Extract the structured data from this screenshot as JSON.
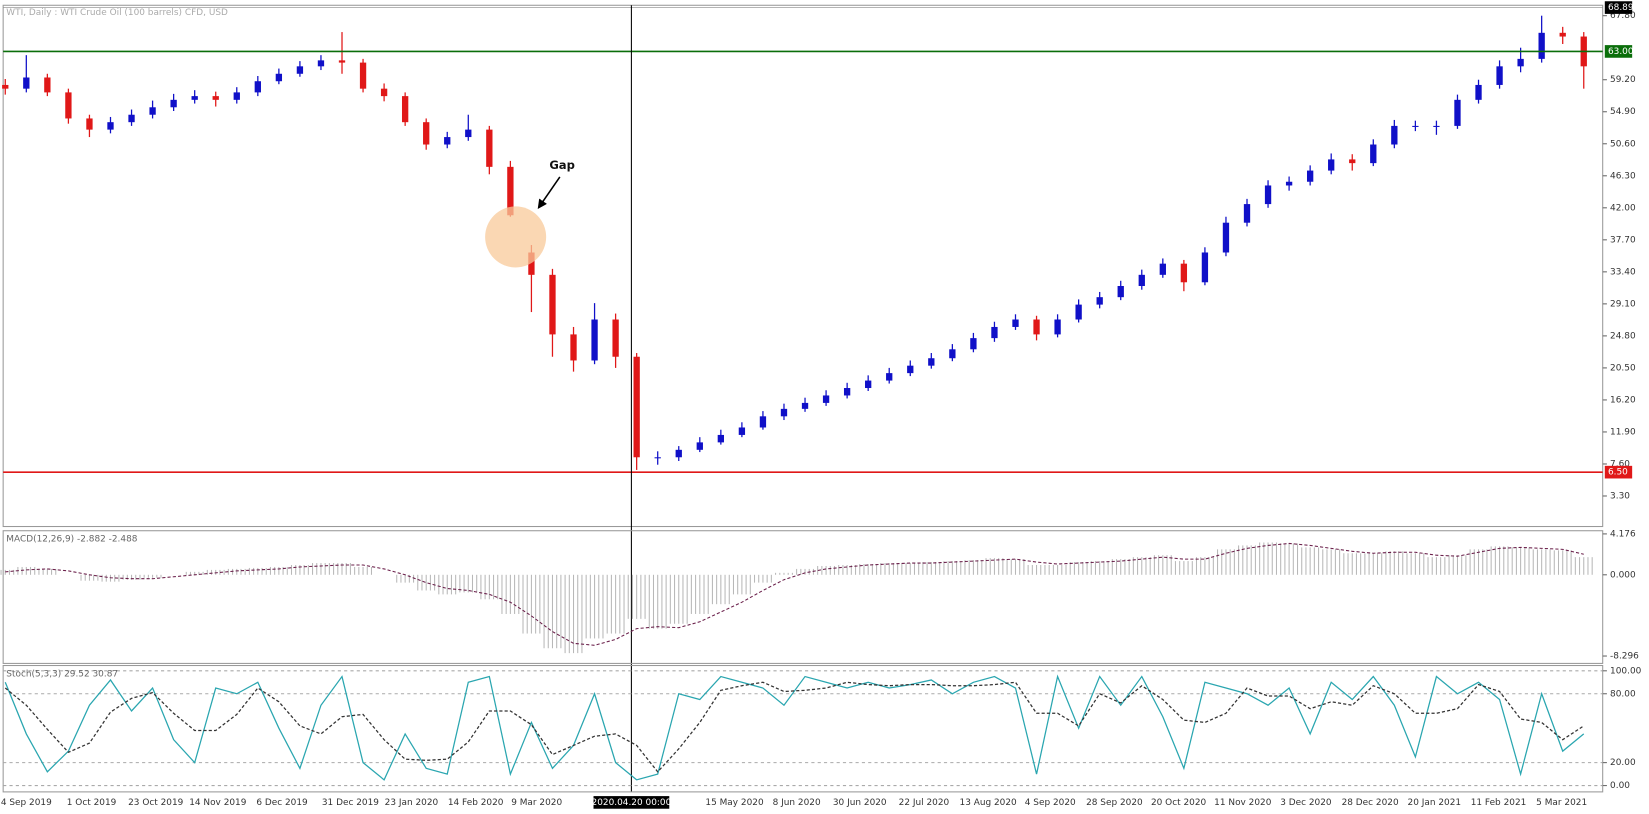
{
  "chart_data": [
    {
      "type": "candlestick",
      "title": "WTI, Daily : WTI Crude Oil (100 barrels) CFD, USD",
      "open": [
        58.5,
        58.0,
        59.5,
        57.5,
        54.0,
        52.5,
        53.5,
        54.5,
        55.5,
        56.5,
        57.0,
        56.5,
        57.5,
        59.0,
        60.0,
        61.0,
        61.8,
        61.5,
        58.0,
        57.0,
        53.5,
        50.5,
        51.5,
        52.5,
        47.5,
        36.0,
        33.0,
        25.0,
        21.5,
        27.0,
        22.0,
        8.5,
        8.5,
        9.5,
        10.5,
        11.5,
        12.5,
        14.0,
        15.0,
        15.8,
        16.8,
        17.8,
        18.8,
        19.8,
        20.8,
        21.8,
        23.0,
        24.5,
        26.0,
        27.0,
        25.0,
        27.0,
        29.0,
        30.0,
        31.5,
        33.0,
        34.5,
        32.0,
        36.0,
        40.0,
        42.5,
        45.0,
        45.5,
        47.0,
        48.5,
        48.0,
        50.5,
        53.0,
        53.0,
        53.0,
        56.5,
        58.5,
        61.0,
        62.0,
        65.5,
        65.0
      ],
      "high": [
        59.3,
        62.5,
        60.0,
        58.0,
        54.5,
        54.2,
        55.2,
        56.4,
        57.3,
        57.8,
        57.6,
        58.2,
        59.7,
        60.7,
        61.7,
        62.5,
        65.6,
        62.0,
        58.7,
        57.5,
        54.0,
        52.2,
        54.5,
        53.0,
        48.3,
        37.0,
        33.8,
        26.0,
        29.2,
        27.8,
        22.5,
        9.3,
        10.0,
        11.2,
        12.2,
        13.2,
        14.7,
        15.7,
        16.5,
        17.5,
        18.5,
        19.5,
        20.5,
        21.5,
        22.5,
        23.7,
        25.2,
        26.7,
        27.7,
        27.5,
        27.7,
        29.7,
        30.7,
        32.2,
        33.7,
        35.2,
        35.0,
        36.7,
        40.8,
        43.2,
        45.7,
        46.2,
        47.7,
        49.3,
        49.2,
        51.2,
        53.8,
        53.7,
        53.7,
        57.2,
        59.2,
        61.8,
        63.5,
        67.8,
        66.3,
        65.6
      ],
      "low": [
        57.2,
        57.5,
        57.0,
        53.3,
        51.5,
        52.0,
        53.0,
        54.0,
        55.0,
        56.0,
        55.6,
        56.0,
        57.0,
        58.6,
        59.6,
        60.5,
        60.0,
        57.5,
        56.3,
        53.0,
        49.8,
        50.0,
        51.0,
        46.5,
        40.8,
        28.0,
        22.0,
        20.0,
        21.0,
        20.5,
        6.8,
        7.5,
        8.0,
        9.2,
        10.2,
        11.2,
        12.2,
        13.5,
        14.6,
        15.4,
        16.4,
        17.4,
        18.4,
        19.4,
        20.4,
        21.4,
        22.6,
        24.0,
        25.6,
        24.2,
        24.6,
        26.6,
        28.5,
        29.6,
        31.0,
        32.6,
        30.8,
        31.6,
        35.5,
        39.5,
        42.0,
        44.3,
        45.0,
        46.5,
        47.0,
        47.6,
        50.0,
        52.3,
        51.8,
        52.6,
        56.0,
        58.0,
        60.2,
        61.5,
        64.0,
        58.0
      ],
      "close": [
        58.0,
        59.5,
        57.5,
        54.0,
        52.5,
        53.5,
        54.5,
        55.5,
        56.5,
        57.0,
        56.5,
        57.5,
        59.0,
        60.0,
        61.0,
        61.8,
        61.5,
        58.0,
        57.0,
        53.5,
        50.5,
        51.5,
        52.5,
        47.5,
        41.0,
        33.0,
        25.0,
        21.5,
        27.0,
        22.0,
        8.5,
        8.5,
        9.5,
        10.5,
        11.5,
        12.5,
        14.0,
        15.0,
        15.8,
        16.8,
        17.8,
        18.8,
        19.8,
        20.8,
        21.8,
        23.0,
        24.5,
        26.0,
        27.0,
        25.0,
        27.0,
        29.0,
        30.0,
        31.5,
        33.0,
        34.5,
        32.0,
        36.0,
        40.0,
        42.5,
        45.0,
        45.5,
        47.0,
        48.5,
        48.0,
        50.5,
        53.0,
        53.0,
        53.0,
        56.5,
        58.5,
        61.0,
        62.0,
        65.5,
        65.0,
        61.0
      ],
      "up_color": "#1010c8",
      "down_color": "#e01818",
      "ylim": [
        -0.8,
        69.2
      ],
      "yticks": [
        {
          "value": 67.8,
          "label": "67.80"
        },
        {
          "value": 59.2,
          "label": "59.20"
        },
        {
          "value": 54.9,
          "label": "54.90"
        },
        {
          "value": 50.6,
          "label": "50.60"
        },
        {
          "value": 46.3,
          "label": "46.30"
        },
        {
          "value": 42,
          "label": "42.00"
        },
        {
          "value": 37.7,
          "label": "37.70"
        },
        {
          "value": 33.4,
          "label": "33.40"
        },
        {
          "value": 29.1,
          "label": "29.10"
        },
        {
          "value": 24.8,
          "label": "24.80"
        },
        {
          "value": 20.5,
          "label": "20.50"
        },
        {
          "value": 16.2,
          "label": "16.20"
        },
        {
          "value": 11.9,
          "label": "11.90"
        },
        {
          "value": 7.6,
          "label": "7.60"
        },
        {
          "value": 3.3,
          "label": "3.30"
        }
      ],
      "hlines": [
        {
          "value": 63,
          "label": "63.00",
          "color": "#0a6e0a"
        },
        {
          "value": 6.5,
          "label": "6.50",
          "color": "#e01818"
        }
      ],
      "last_price": {
        "value": 68.89,
        "label": "68.89"
      },
      "annotation": "Gap",
      "crosshair_label": "2020.04.20 00:00",
      "x_labels": [
        "4 Sep 2019",
        "1 Oct 2019",
        "23 Oct 2019",
        "14 Nov 2019",
        "6 Dec 2019",
        "31 Dec 2019",
        "23 Jan 2020",
        "14 Feb 2020",
        "9 Mar 2020",
        "15 May 2020",
        "8 Jun 2020",
        "30 Jun 2020",
        "22 Jul 2020",
        "13 Aug 2020",
        "4 Sep 2020",
        "28 Sep 2020",
        "20 Oct 2020",
        "11 Nov 2020",
        "3 Dec 2020",
        "28 Dec 2020",
        "20 Jan 2021",
        "11 Feb 2021",
        "5 Mar 2021"
      ]
    },
    {
      "type": "macd",
      "title": "MACD(12,26,9) -2.882 -2.488",
      "series": [
        {
          "style": "histogram",
          "color": "#b8b8b8",
          "values": [
            0.5,
            0.8,
            0.6,
            0,
            -0.6,
            -0.7,
            -0.5,
            -0.3,
            0,
            0.3,
            0.5,
            0.6,
            0.7,
            0.8,
            1.0,
            1.2,
            1.2,
            0.8,
            0,
            -0.8,
            -1.6,
            -2.0,
            -1.8,
            -2.5,
            -4.0,
            -6.0,
            -7.5,
            -8.0,
            -6.5,
            -6.0,
            -4.5,
            -5.5,
            -5.0,
            -4.0,
            -3.0,
            -2.0,
            -0.8,
            0.2,
            0.6,
            0.9,
            1.0,
            1.1,
            1.2,
            1.2,
            1.3,
            1.4,
            1.5,
            1.7,
            1.6,
            1.0,
            1.0,
            1.3,
            1.4,
            1.6,
            1.8,
            2.0,
            1.4,
            1.8,
            2.6,
            3.0,
            3.3,
            3.2,
            2.8,
            2.6,
            2.2,
            2.2,
            2.4,
            2.2,
            1.8,
            2.0,
            2.6,
            2.9,
            2.8,
            2.6,
            2.5,
            1.8
          ]
        },
        {
          "style": "dashed",
          "color": "#6a1f4a",
          "values": [
            0.3,
            0.5,
            0.6,
            0.4,
            0,
            -0.3,
            -0.4,
            -0.4,
            -0.2,
            0,
            0.2,
            0.4,
            0.5,
            0.6,
            0.8,
            0.9,
            1.0,
            1.0,
            0.6,
            0,
            -0.8,
            -1.4,
            -1.6,
            -2.0,
            -2.8,
            -4.2,
            -5.8,
            -7.0,
            -7.2,
            -6.6,
            -5.5,
            -5.3,
            -5.4,
            -4.8,
            -3.8,
            -2.8,
            -1.6,
            -0.5,
            0.2,
            0.6,
            0.8,
            1.0,
            1.1,
            1.2,
            1.2,
            1.3,
            1.4,
            1.5,
            1.6,
            1.3,
            1.1,
            1.2,
            1.3,
            1.4,
            1.6,
            1.8,
            1.6,
            1.6,
            2.2,
            2.7,
            3.0,
            3.2,
            3.0,
            2.7,
            2.4,
            2.2,
            2.3,
            2.3,
            2.0,
            1.9,
            2.3,
            2.7,
            2.8,
            2.7,
            2.6,
            2.1
          ]
        }
      ],
      "ylim": [
        -9.05,
        4.5
      ],
      "yticks": [
        4.176,
        {
          "value": 0,
          "label": "0.000"
        },
        -8.296
      ]
    },
    {
      "type": "stochastic",
      "title": "Stoch(5,3,3) 29.52 30.87",
      "series": [
        {
          "style": "solid",
          "color": "#2aa6b0",
          "values": [
            90,
            45,
            12,
            30,
            70,
            92,
            65,
            85,
            40,
            20,
            85,
            80,
            90,
            50,
            15,
            70,
            95,
            20,
            5,
            45,
            15,
            10,
            90,
            95,
            10,
            55,
            15,
            35,
            80,
            20,
            5,
            10,
            80,
            75,
            95,
            90,
            85,
            70,
            95,
            90,
            85,
            90,
            85,
            88,
            92,
            80,
            90,
            95,
            85,
            10,
            95,
            50,
            95,
            70,
            95,
            60,
            15,
            90,
            85,
            80,
            70,
            85,
            45,
            90,
            75,
            95,
            70,
            25,
            95,
            80,
            90,
            75,
            10,
            80,
            30,
            45
          ]
        },
        {
          "style": "dashed",
          "color": "#333333",
          "values": [
            85,
            70,
            49,
            29,
            37,
            64,
            76,
            81,
            63,
            48,
            48,
            62,
            85,
            73,
            52,
            45,
            60,
            62,
            40,
            23,
            22,
            23,
            38,
            65,
            65,
            53,
            27,
            35,
            43,
            45,
            35,
            12,
            32,
            55,
            83,
            87,
            90,
            82,
            83,
            85,
            90,
            88,
            87,
            88,
            88,
            87,
            87,
            88,
            90,
            63,
            63,
            52,
            80,
            72,
            87,
            75,
            57,
            55,
            63,
            85,
            78,
            78,
            67,
            73,
            70,
            87,
            80,
            63,
            63,
            67,
            88,
            82,
            58,
            55,
            40,
            52
          ]
        }
      ],
      "ylim": [
        -5.5,
        104.6
      ],
      "yticks": [
        {
          "value": 100,
          "label": "100.00"
        },
        {
          "value": 80,
          "label": "80.00"
        },
        {
          "value": 20,
          "label": "20.00"
        },
        {
          "value": 0,
          "label": "0.00"
        }
      ],
      "grid": true
    }
  ]
}
